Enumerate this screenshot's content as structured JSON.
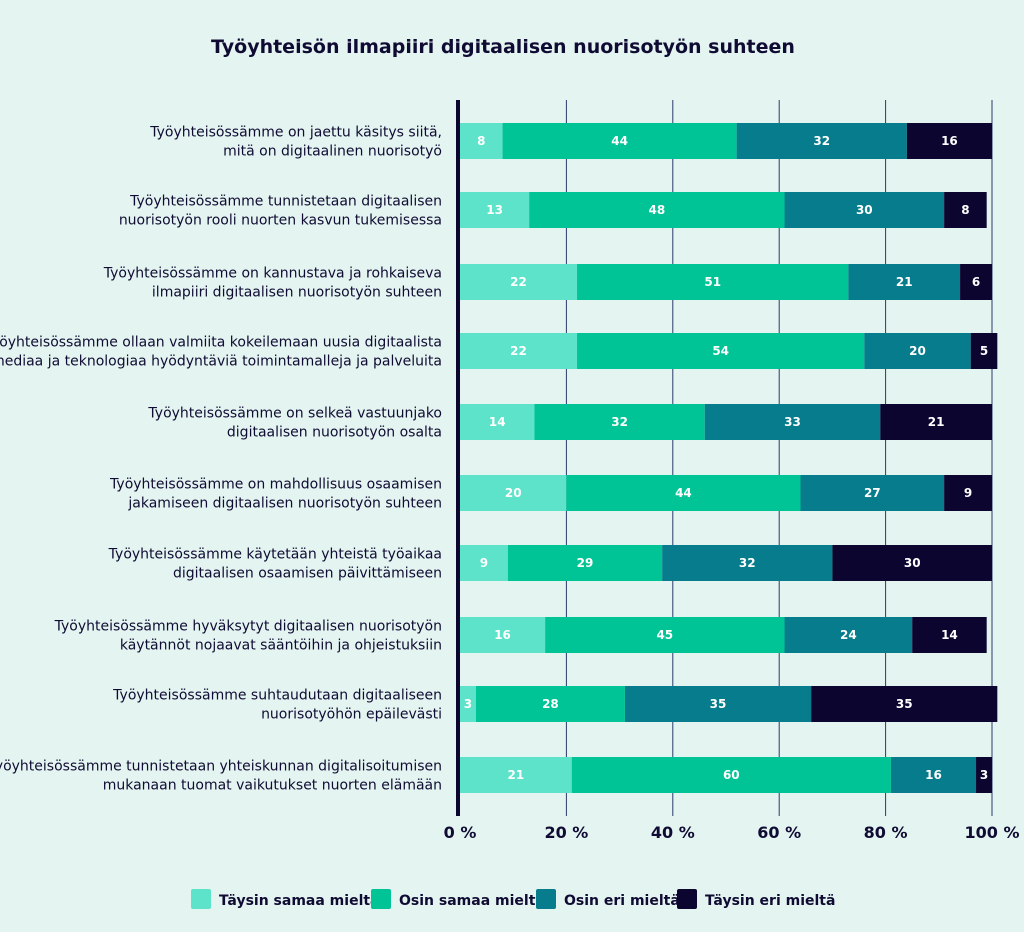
{
  "chart_data": {
    "type": "bar",
    "orientation": "horizontal",
    "stacked": true,
    "title": "Työyhteisön ilmapiiri digitaalisen nuorisotyön suhteen",
    "categories": [
      [
        "Työyhteisössämme on jaettu käsitys siitä,",
        "mitä on digitaalinen nuorisotyö"
      ],
      [
        "Työyhteisössämme tunnistetaan digitaalisen",
        "nuorisotyön rooli nuorten kasvun tukemisessa"
      ],
      [
        "Työyhteisössämme on kannustava ja rohkaiseva",
        "ilmapiiri digitaalisen nuorisotyön suhteen"
      ],
      [
        "Työyhteisössämme ollaan valmiita kokeilemaan uusia digitaalista",
        "mediaa ja teknologiaa hyödyntäviä toimintamalleja ja palveluita"
      ],
      [
        "Työyhteisössämme on selkeä vastuunjako",
        "digitaalisen nuorisotyön osalta"
      ],
      [
        "Työyhteisössämme on mahdollisuus osaamisen",
        "jakamiseen digitaalisen nuorisotyön suhteen"
      ],
      [
        "Työyhteisössämme käytetään yhteistä työaikaa",
        "digitaalisen osaamisen päivittämiseen"
      ],
      [
        "Työyhteisössämme hyväksytyt digitaalisen nuorisotyön",
        "käytännöt nojaavat sääntöihin ja ohjeistuksiin"
      ],
      [
        "Työyhteisössämme suhtaudutaan digitaaliseen",
        "nuorisotyöhön epäilevästi"
      ],
      [
        "Työyhteisössämme tunnistetaan yhteiskunnan digitalisoitumisen",
        "mukanaan tuomat vaikutukset nuorten elämään"
      ]
    ],
    "series": [
      {
        "name": "Täysin samaa mieltä",
        "color": "#5ce3c9",
        "label_color": "#ffffff",
        "values": [
          8,
          13,
          22,
          22,
          14,
          20,
          9,
          16,
          3,
          21
        ]
      },
      {
        "name": "Osin samaa mieltä",
        "color": "#00c496",
        "label_color": "#ffffff",
        "values": [
          44,
          48,
          51,
          54,
          32,
          44,
          29,
          45,
          28,
          60
        ]
      },
      {
        "name": "Osin eri mieltä",
        "color": "#067c8c",
        "label_color": "#ffffff",
        "values": [
          32,
          30,
          21,
          20,
          33,
          27,
          32,
          24,
          35,
          16
        ]
      },
      {
        "name": "Täysin eri mieltä",
        "color": "#0c0530",
        "label_color": "#ffffff",
        "values": [
          16,
          8,
          6,
          5,
          21,
          9,
          30,
          14,
          35,
          3
        ]
      }
    ],
    "xticks": [
      "0 %",
      "20 %",
      "40 %",
      "60 %",
      "80 %",
      "100 %"
    ],
    "xlim": [
      0,
      100
    ],
    "grid": true,
    "legend_position": "bottom"
  }
}
